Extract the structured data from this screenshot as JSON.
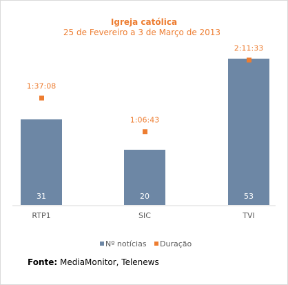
{
  "chart_data": {
    "type": "bar",
    "title": "Igreja católica",
    "subtitle": "25 de Fevereiro a 3 de Março de 2013",
    "categories": [
      "RTP1",
      "SIC",
      "TVI"
    ],
    "series": [
      {
        "name": "Nº notícias",
        "type": "bar",
        "values": [
          31,
          20,
          53
        ],
        "color": "#6D87A5"
      },
      {
        "name": "Duração",
        "type": "point",
        "values": [
          "1:37:08",
          "1:06:43",
          "2:11:33"
        ],
        "color": "#ED7D31"
      }
    ],
    "ylim": [
      0,
      60
    ],
    "duration_ylim_seconds": [
      0,
      9000
    ],
    "grid": false,
    "legend": "bottom"
  },
  "footer": {
    "source_label": "Fonte:",
    "source_text": "MediaMonitor, Telenews"
  }
}
